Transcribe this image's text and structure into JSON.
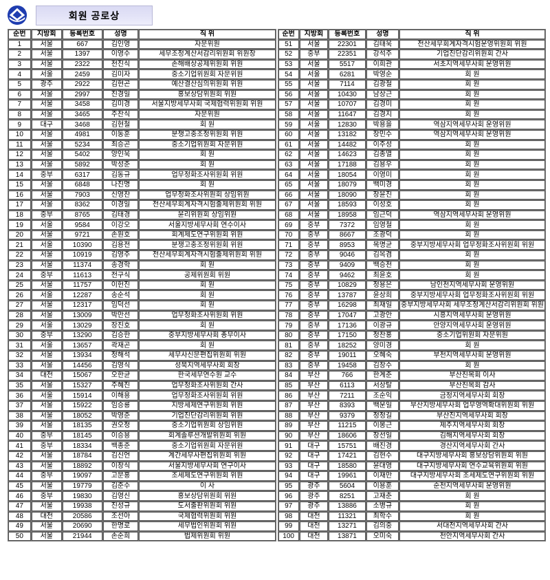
{
  "page": {
    "title": "회원 공로상",
    "logo": "tax-association-logo",
    "colors": {
      "logo_blue": "#1f3db0",
      "title_bg": "#dadaf3",
      "title_border": "#b7b7d6",
      "table_border": "#555555",
      "text": "#000000"
    }
  },
  "table": {
    "headers": [
      "순번",
      "지방회",
      "등록번호",
      "성명",
      "직 위"
    ],
    "left_rows": [
      [
        "1",
        "서울",
        "667",
        "김인영",
        "자문위원"
      ],
      [
        "2",
        "서울",
        "1397",
        "이영수",
        "세무조정계산서감리위원회 위원장"
      ],
      [
        "3",
        "서울",
        "2322",
        "천진식",
        "손해배상공제위원회 위원"
      ],
      [
        "4",
        "서울",
        "2459",
        "김미자",
        "중소기업위원회 자문위원"
      ],
      [
        "5",
        "광주",
        "2922",
        "김현곤",
        "예산결산심의위원회 위원"
      ],
      [
        "6",
        "서울",
        "2997",
        "진경일",
        "홍보상담위원회 위원"
      ],
      [
        "7",
        "서울",
        "3458",
        "김미경",
        "서울지방세무사회 국제협력위원회 위원"
      ],
      [
        "8",
        "서울",
        "3465",
        "주찬식",
        "자문위원"
      ],
      [
        "9",
        "대구",
        "3468",
        "김현철",
        "회 원"
      ],
      [
        "10",
        "서울",
        "4981",
        "이동훈",
        "분쟁고충조정위원회 위원"
      ],
      [
        "11",
        "서울",
        "5234",
        "최승곤",
        "중소기업위원회 자문위원"
      ],
      [
        "12",
        "서울",
        "5402",
        "양인욱",
        "회 원"
      ],
      [
        "13",
        "서울",
        "5892",
        "박성춘",
        "회 원"
      ],
      [
        "14",
        "중부",
        "6317",
        "김동규",
        "업무정화조사위원회 위원"
      ],
      [
        "15",
        "서울",
        "6848",
        "나진명",
        "회 원"
      ],
      [
        "16",
        "서울",
        "7903",
        "신영찬",
        "업무정화조사위원회 상임위원"
      ],
      [
        "17",
        "서울",
        "8362",
        "이경일",
        "전산세무회계자격시험출제위원회 위원"
      ],
      [
        "18",
        "중부",
        "8765",
        "김태경",
        "윤리위원회 상임위원"
      ],
      [
        "19",
        "서울",
        "9584",
        "이강오",
        "서울지방세무사회 연수이사"
      ],
      [
        "20",
        "서울",
        "9721",
        "손원호",
        "회계제도연구위원회 위원"
      ],
      [
        "21",
        "서울",
        "10390",
        "김용전",
        "분쟁고충조정위원회 위원"
      ],
      [
        "22",
        "서울",
        "10919",
        "김영주",
        "전산세무회계자격시험출제위원회 위원"
      ],
      [
        "23",
        "서울",
        "11374",
        "송경학",
        "회 원"
      ],
      [
        "24",
        "중부",
        "11613",
        "전구식",
        "공제위원회 위원"
      ],
      [
        "25",
        "서울",
        "11757",
        "이헌진",
        "회 원"
      ],
      [
        "26",
        "서울",
        "12287",
        "송순석",
        "회 원"
      ],
      [
        "27",
        "서울",
        "12317",
        "임덕선",
        "회 원"
      ],
      [
        "28",
        "서울",
        "13009",
        "박만선",
        "업무정화조사위원회 위원"
      ],
      [
        "29",
        "서울",
        "13029",
        "장진호",
        "회 원"
      ],
      [
        "30",
        "중부",
        "13290",
        "김승한",
        "중부지방세무사회 총무이사"
      ],
      [
        "31",
        "서울",
        "13657",
        "곽재곤",
        "회 원"
      ],
      [
        "32",
        "서울",
        "13934",
        "정해석",
        "세무사신문편집위원회 위원"
      ],
      [
        "33",
        "서울",
        "14456",
        "김영식",
        "성북지역세무사회 회장"
      ],
      [
        "34",
        "대전",
        "15067",
        "오한균",
        "한국세무연수원 교수"
      ],
      [
        "35",
        "서울",
        "15327",
        "주혜진",
        "업무정화조사위원회 간사"
      ],
      [
        "36",
        "서울",
        "15914",
        "이해용",
        "업무정화조사위원회 위원"
      ],
      [
        "37",
        "서울",
        "15922",
        "임승룡",
        "지방세제연구위원회 위원"
      ],
      [
        "38",
        "서울",
        "18052",
        "박영준",
        "기업진단감리위원회 위원"
      ],
      [
        "39",
        "서울",
        "18135",
        "권오정",
        "중소기업위원회 상임위원"
      ],
      [
        "40",
        "중부",
        "18145",
        "이승용",
        "회계솔루션개발위원회 위원"
      ],
      [
        "41",
        "중부",
        "18334",
        "백종준",
        "중소기업위원회 자문위원"
      ],
      [
        "42",
        "서울",
        "18784",
        "김신언",
        "계간세무사편집위원회 위원"
      ],
      [
        "43",
        "서울",
        "18892",
        "이창식",
        "서울지방세무사회 연구이사"
      ],
      [
        "44",
        "중부",
        "19097",
        "고문홍",
        "조세제도연구위원회 위원"
      ],
      [
        "45",
        "서울",
        "19779",
        "김준수",
        "이 사"
      ],
      [
        "46",
        "중부",
        "19830",
        "김영신",
        "홍보상담위원회 위원"
      ],
      [
        "47",
        "서울",
        "19938",
        "진성규",
        "도서출판위원회 위원"
      ],
      [
        "48",
        "대전",
        "20586",
        "조선아",
        "국제협력위원회 위원"
      ],
      [
        "49",
        "서울",
        "20690",
        "한명로",
        "세무법인위원회 위원"
      ],
      [
        "50",
        "서울",
        "21944",
        "손순희",
        "법제위원회 위원"
      ]
    ],
    "right_rows": [
      [
        "51",
        "서울",
        "22301",
        "김태욱",
        "전산세무회계자격시험운영위원회 위원"
      ],
      [
        "52",
        "중부",
        "22351",
        "강석주",
        "기업진단감리위원회 간사"
      ],
      [
        "53",
        "서울",
        "5517",
        "이희관",
        "서초지역세무사회 운영위원"
      ],
      [
        "54",
        "서울",
        "6281",
        "박영순",
        "회 원"
      ],
      [
        "55",
        "서울",
        "7114",
        "김광철",
        "회 원"
      ],
      [
        "56",
        "서울",
        "10430",
        "남상근",
        "회 원"
      ],
      [
        "57",
        "서울",
        "10707",
        "김경미",
        "회 원"
      ],
      [
        "58",
        "서울",
        "11647",
        "김경지",
        "회 원"
      ],
      [
        "59",
        "서울",
        "12830",
        "박용을",
        "역삼지역세무사회 운영위원"
      ],
      [
        "60",
        "서울",
        "13182",
        "장민수",
        "역삼지역세무사회 운영위원"
      ],
      [
        "61",
        "서울",
        "14482",
        "이주성",
        "회 원"
      ],
      [
        "62",
        "서울",
        "14623",
        "김종열",
        "회 원"
      ],
      [
        "63",
        "서울",
        "17188",
        "김용우",
        "회 원"
      ],
      [
        "64",
        "서울",
        "18054",
        "이영미",
        "회 원"
      ],
      [
        "65",
        "서울",
        "18079",
        "백미경",
        "회 원"
      ],
      [
        "66",
        "서울",
        "18090",
        "장윤진",
        "회 원"
      ],
      [
        "67",
        "서울",
        "18593",
        "이성호",
        "회 원"
      ],
      [
        "68",
        "서울",
        "18958",
        "임근덕",
        "역삼지역세무사회 운영위원"
      ],
      [
        "69",
        "중부",
        "7372",
        "임영철",
        "회 원"
      ],
      [
        "70",
        "중부",
        "8667",
        "조광덕",
        "회 원"
      ],
      [
        "71",
        "중부",
        "8953",
        "목명균",
        "중부지방세무사회 업무정화조사위원회 위원"
      ],
      [
        "72",
        "중부",
        "9046",
        "김옥겸",
        "회 원"
      ],
      [
        "73",
        "중부",
        "9409",
        "백승천",
        "회 원"
      ],
      [
        "74",
        "중부",
        "9462",
        "최윤호",
        "회 원"
      ],
      [
        "75",
        "중부",
        "10829",
        "정용은",
        "남인천지역세무사회 운영위원"
      ],
      [
        "76",
        "중부",
        "13787",
        "윤상희",
        "중부지방세무사회 업무정화조사위원회 위원"
      ],
      [
        "77",
        "중부",
        "16298",
        "최재일",
        "중부지방세무사회 세무조정계산서감리위원회 위원"
      ],
      [
        "78",
        "중부",
        "17047",
        "고광안",
        "시흥지역세무사회 운영위원"
      ],
      [
        "79",
        "중부",
        "17136",
        "이광규",
        "안양지역세무사회 운영위원"
      ],
      [
        "80",
        "중부",
        "17150",
        "정찬홍",
        "중소기업위원회 자문위원"
      ],
      [
        "81",
        "중부",
        "18252",
        "양미경",
        "회 원"
      ],
      [
        "82",
        "중부",
        "19011",
        "오혜숙",
        "부천지역세무사회 운영위원"
      ],
      [
        "83",
        "중부",
        "19458",
        "김창수",
        "회 원"
      ],
      [
        "84",
        "부산",
        "766",
        "한계춘",
        "부산친목회 이사"
      ],
      [
        "85",
        "부산",
        "6113",
        "서상탈",
        "부산친목회 감사"
      ],
      [
        "86",
        "부산",
        "7211",
        "조순익",
        "금정지역세무사회 회장"
      ],
      [
        "87",
        "부산",
        "8393",
        "백운일",
        "부산지방세무사회 업무영역확대위원회 위원"
      ],
      [
        "88",
        "부산",
        "9379",
        "정정길",
        "부산진지역세무사회 회장"
      ],
      [
        "89",
        "부산",
        "11215",
        "이봉근",
        "제주지역세무사회 회장"
      ],
      [
        "90",
        "부산",
        "18606",
        "장선일",
        "김해지역세무사회 회장"
      ],
      [
        "91",
        "대구",
        "15751",
        "배진경",
        "경산지역세무사회 간사"
      ],
      [
        "92",
        "대구",
        "17421",
        "김현수",
        "대구지방세무사회 홍보상담위원회 위원"
      ],
      [
        "93",
        "대구",
        "18580",
        "윤대영",
        "대구지방세무사회 연수교육위원회 위원"
      ],
      [
        "94",
        "대구",
        "19961",
        "이재만",
        "대구지방세무사회 조세제도연구위원회 위원"
      ],
      [
        "95",
        "광주",
        "5604",
        "이용훈",
        "순천지역세무사회 운영위원"
      ],
      [
        "96",
        "광주",
        "8251",
        "고재춘",
        "회 원"
      ],
      [
        "97",
        "광주",
        "13886",
        "소병규",
        "회 원"
      ],
      [
        "98",
        "대전",
        "11321",
        "최학수",
        "회 원"
      ],
      [
        "99",
        "대전",
        "13271",
        "김의중",
        "서대전지역세무사회 간사"
      ],
      [
        "100",
        "대전",
        "13871",
        "오미숙",
        "천안지역세무사회 간사"
      ]
    ]
  }
}
